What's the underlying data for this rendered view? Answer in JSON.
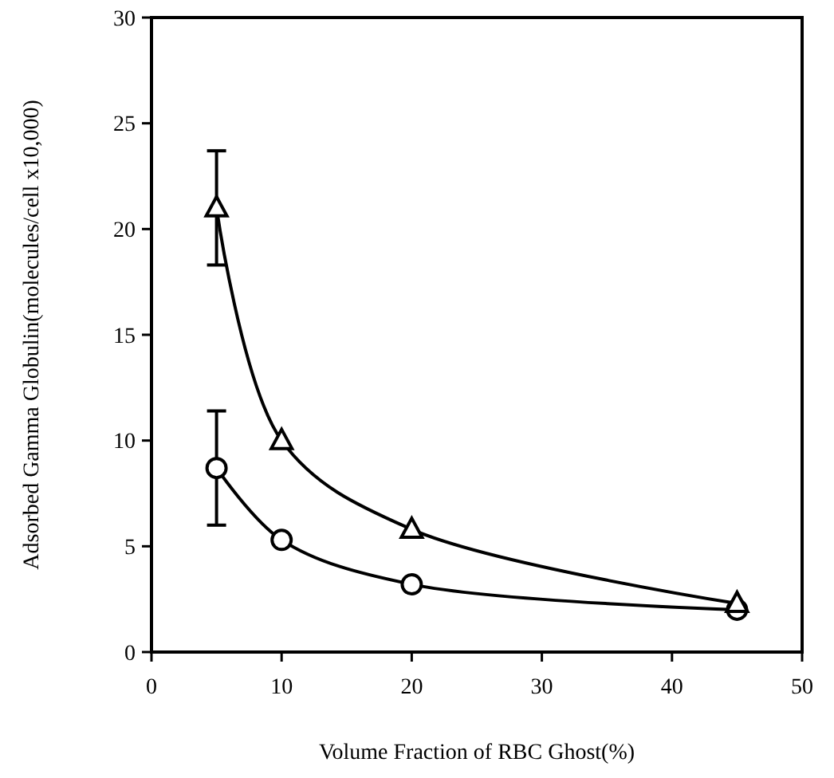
{
  "chart_data": {
    "type": "line",
    "xlabel": "Volume Fraction of RBC Ghost(%)",
    "ylabel": "Adsorbed Gamma Globulin(molecules/cell x10,000)",
    "xlim": [
      0,
      50
    ],
    "xticks": [
      0,
      10,
      20,
      30,
      40,
      50
    ],
    "ylim": [
      0,
      30
    ],
    "yticks": [
      0,
      5,
      10,
      15,
      20,
      25,
      30
    ],
    "line_style": "solid",
    "series": [
      {
        "color": "#000000",
        "marker": "triangle",
        "x": [
          5,
          10,
          20,
          45
        ],
        "values": [
          21,
          10,
          5.8,
          2.3
        ],
        "errors": [
          2.7,
          null,
          null,
          null
        ]
      },
      {
        "color": "#000000",
        "marker": "circle",
        "x": [
          5,
          10,
          20,
          45
        ],
        "values": [
          8.7,
          5.3,
          3.2,
          2.0
        ],
        "errors": [
          2.7,
          null,
          null,
          null
        ]
      }
    ]
  }
}
